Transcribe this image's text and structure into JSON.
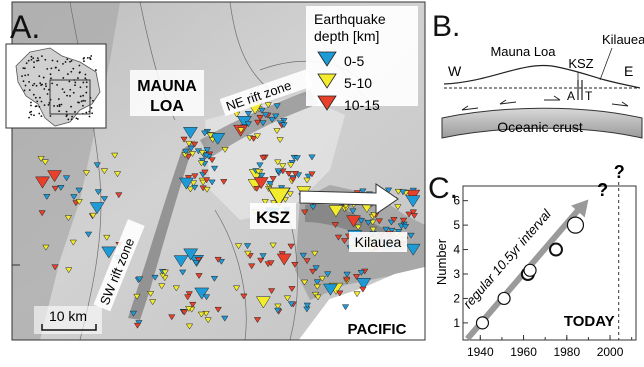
{
  "panel_a": {
    "letter": "A.",
    "legend": {
      "title_line1": "Earthquake",
      "title_line2": "depth [km]",
      "items": [
        {
          "label": "0-5",
          "color": "#1e9bd7"
        },
        {
          "label": "5-10",
          "color": "#f2ec2c"
        },
        {
          "label": "10-15",
          "color": "#e8402a"
        }
      ]
    },
    "labels": {
      "mauna_loa_1": "MAUNA",
      "mauna_loa_2": "LOA",
      "ne_rift": "NE rift zone",
      "sw_rift": "SW rift zone",
      "ksz": "KSZ",
      "kilauea": "Kilauea",
      "pacific": "PACIFIC",
      "scale": "10 km"
    }
  },
  "panel_b": {
    "letter": "B.",
    "mauna_loa": "Mauna Loa",
    "ksz": "KSZ",
    "kilauea": "Kilauea",
    "w": "W",
    "e": "E",
    "a": "A",
    "t": "T",
    "crust": "Oceanic crust"
  },
  "panel_c": {
    "letter": "C.",
    "chart_data": {
      "type": "scatter",
      "ylabel": "Number",
      "x_ticks": [
        "1940",
        "1960",
        "1980",
        "2000"
      ],
      "y_ticks": [
        "1",
        "2",
        "3",
        "4",
        "5",
        "6"
      ],
      "xlim": [
        1932,
        2012
      ],
      "ylim": [
        0.3,
        6.6
      ],
      "points": [
        {
          "x": 1941,
          "y": 1
        },
        {
          "x": 1951,
          "y": 2
        },
        {
          "x": 1962,
          "y": 3
        },
        {
          "x": 1963,
          "y": 3.15
        },
        {
          "x": 1975,
          "y": 4
        },
        {
          "x": 1984,
          "y": 5
        }
      ],
      "trend_label": "regular 10.5yr interval",
      "today_label": "TODAY",
      "today_x": 2004,
      "question_marks": [
        "?",
        "?"
      ]
    }
  }
}
